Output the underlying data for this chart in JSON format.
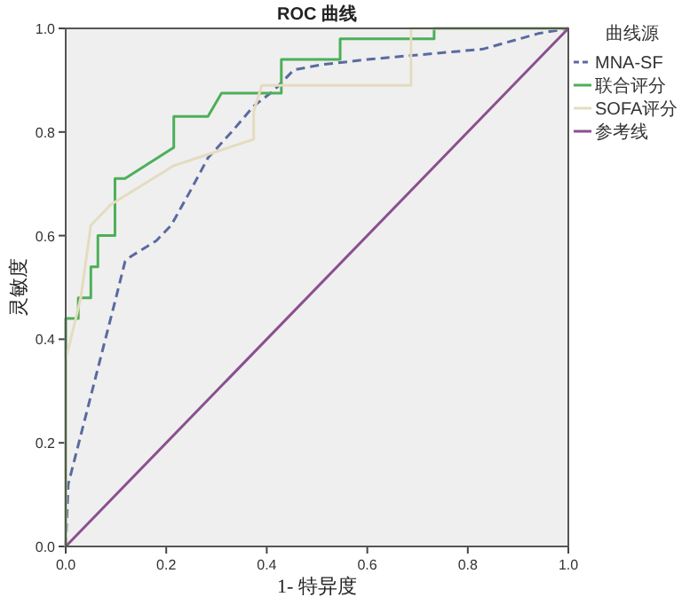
{
  "chart_data": {
    "type": "line",
    "title": "ROC 曲线",
    "xlabel": "1- 特异度",
    "ylabel": "灵敏度",
    "legend_title": "曲线源",
    "legend": "right",
    "grid": false,
    "marker": "none",
    "xlim": [
      0,
      1
    ],
    "ylim": [
      0,
      1
    ],
    "xticks": [
      {
        "value": 0,
        "label": "0.0"
      },
      0.2,
      0.4,
      0.6,
      0.8,
      {
        "value": 1,
        "label": "1.0"
      }
    ],
    "yticks": [
      {
        "value": 0,
        "label": "0.0"
      },
      0.2,
      0.4,
      0.6,
      0.8,
      {
        "value": 1,
        "label": "1.0"
      }
    ],
    "series": [
      {
        "name": "MNA-SF",
        "color": "#5a6aa0",
        "line_style": "dashed",
        "x": [
          0,
          0.005,
          0.1,
          0.118,
          0.13,
          0.18,
          0.21,
          0.25,
          0.283,
          0.33,
          0.374,
          0.414,
          0.454,
          0.51,
          0.6,
          0.83,
          0.94,
          1
        ],
        "values": [
          0,
          0.12,
          0.48,
          0.55,
          0.56,
          0.59,
          0.62,
          0.69,
          0.75,
          0.8,
          0.85,
          0.88,
          0.92,
          0.93,
          0.94,
          0.96,
          0.99,
          1
        ]
      },
      {
        "name": "联合评分",
        "color": "#4daf5a",
        "line_style": "solid",
        "x": [
          0,
          0,
          0.025,
          0.025,
          0.05,
          0.05,
          0.064,
          0.064,
          0.098,
          0.098,
          0.118,
          0.215,
          0.215,
          0.283,
          0.31,
          0.429,
          0.429,
          0.546,
          0.546,
          0.733,
          0.733,
          1
        ],
        "values": [
          0,
          0.44,
          0.44,
          0.48,
          0.48,
          0.54,
          0.54,
          0.6,
          0.6,
          0.71,
          0.71,
          0.77,
          0.83,
          0.83,
          0.875,
          0.875,
          0.94,
          0.94,
          0.98,
          0.98,
          1,
          1
        ]
      },
      {
        "name": "SOFA评分",
        "color": "#e4dcc0",
        "line_style": "solid",
        "x": [
          0,
          0,
          0.03,
          0.05,
          0.09,
          0.215,
          0.374,
          0.374,
          0.39,
          0.687,
          0.687,
          1
        ],
        "values": [
          0,
          0.36,
          0.48,
          0.62,
          0.66,
          0.735,
          0.786,
          0.84,
          0.89,
          0.89,
          1,
          1
        ]
      },
      {
        "name": "参考线",
        "color": "#8b4f8f",
        "line_style": "solid",
        "x": [
          0,
          1
        ],
        "values": [
          0,
          1
        ]
      }
    ]
  }
}
